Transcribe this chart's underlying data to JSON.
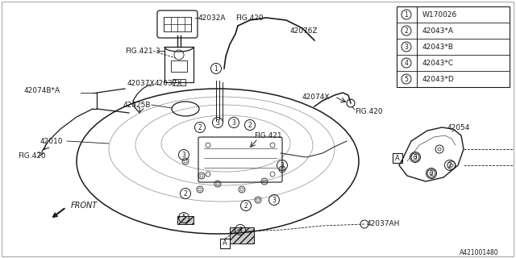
{
  "bg_color": "#ffffff",
  "line_color": "#1a1a1a",
  "gray_color": "#999999",
  "legend_items": [
    {
      "num": "1",
      "code": "W170026"
    },
    {
      "num": "2",
      "code": "42043*A"
    },
    {
      "num": "3",
      "code": "42043*B"
    },
    {
      "num": "4",
      "code": "42043*C"
    },
    {
      "num": "5",
      "code": "42043*D"
    }
  ],
  "diagram_id": "A421001480"
}
